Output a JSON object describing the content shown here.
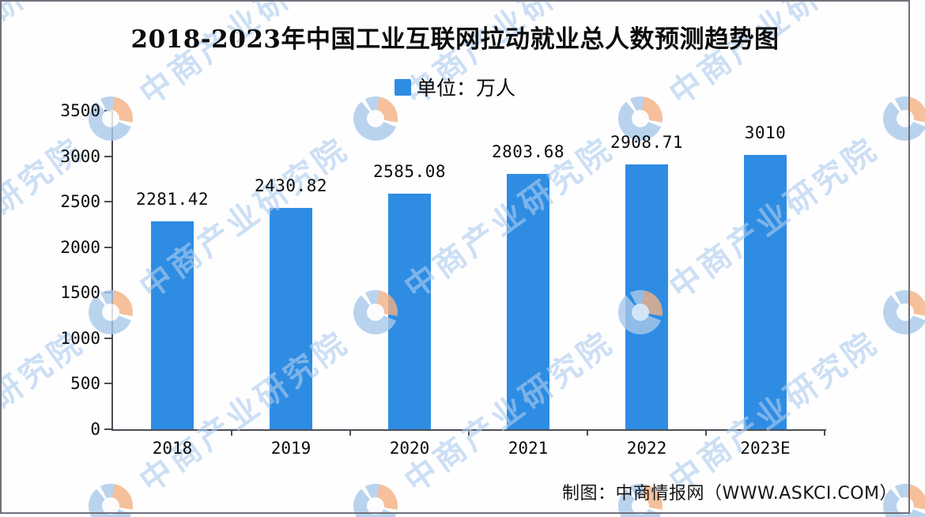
{
  "title": "2018-2023年中国工业互联网拉动就业总人数预测趋势图",
  "legend": {
    "label": "单位：万人",
    "swatch_color": "#2E8CE3",
    "swatch_icon": "blue-square-icon"
  },
  "chart_data": {
    "type": "bar",
    "title": "2018-2023年中国工业互联网拉动就业总人数预测趋势图",
    "unit_legend": "单位：万人",
    "categories": [
      "2018",
      "2019",
      "2020",
      "2021",
      "2022",
      "2023E"
    ],
    "values": [
      2281.42,
      2430.82,
      2585.08,
      2803.68,
      2908.71,
      3010
    ],
    "value_labels": [
      "2281.42",
      "2430.82",
      "2585.08",
      "2803.68",
      "2908.71",
      "3010"
    ],
    "xlabel": "",
    "ylabel": "",
    "ylim": [
      0,
      3500
    ],
    "yticks": [
      0,
      500,
      1000,
      1500,
      2000,
      2500,
      3000,
      3500
    ],
    "grid": false,
    "legend_position": "top-center",
    "bar_color": "#2E8CE3",
    "axis_color": "#4d4d57"
  },
  "footer": {
    "credit": "制图：中商情报网（WWW.ASKCI.COM）"
  },
  "watermark": {
    "text": "中商产业研究院",
    "text_color": "rgba(173,203,238,0.62)",
    "logo_blue": "#a9c9ea",
    "logo_orange": "#f3b183",
    "logo_name": "askci-logo-icon"
  },
  "frame": {
    "border_color": "#71717c"
  }
}
